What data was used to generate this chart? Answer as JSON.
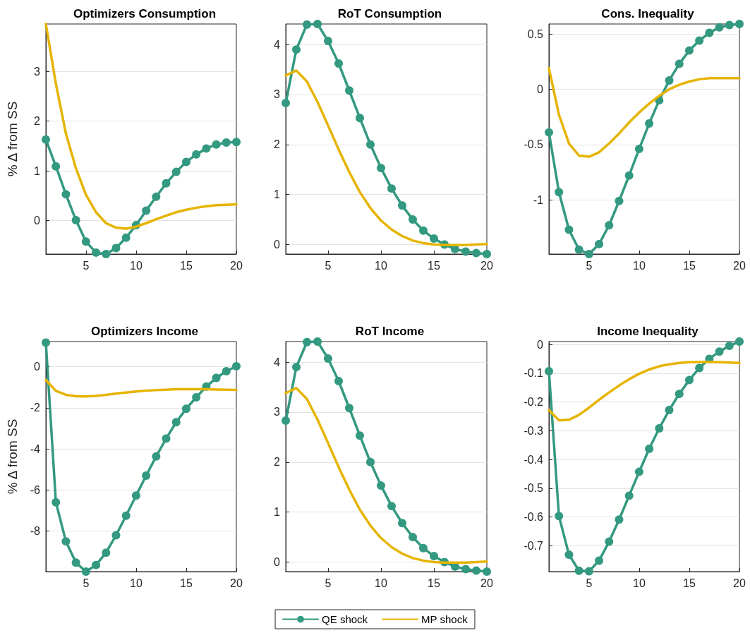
{
  "chart_data": [
    {
      "type": "line",
      "title": "Optimizers Consumption",
      "ylabel": "% Δ from SS",
      "x": [
        1,
        2,
        3,
        4,
        5,
        6,
        7,
        8,
        9,
        10,
        11,
        12,
        13,
        14,
        15,
        16,
        17,
        18,
        19,
        20
      ],
      "xlim": [
        1,
        20
      ],
      "xticks": [
        5,
        10,
        15,
        20
      ],
      "ylim": [
        -0.67,
        3.95
      ],
      "yticks": [
        0,
        1,
        2,
        3
      ],
      "grid": "y",
      "series": [
        {
          "color": "#339980",
          "marker": "circle",
          "values": [
            1.63,
            1.09,
            0.53,
            0.01,
            -0.42,
            -0.64,
            -0.67,
            -0.55,
            -0.34,
            -0.09,
            0.2,
            0.48,
            0.75,
            0.98,
            1.18,
            1.33,
            1.45,
            1.53,
            1.57,
            1.58
          ]
        },
        {
          "color": "#e6b400",
          "marker": "none",
          "values": [
            3.95,
            2.75,
            1.75,
            1.05,
            0.52,
            0.17,
            -0.05,
            -0.14,
            -0.16,
            -0.12,
            -0.05,
            0.03,
            0.1,
            0.17,
            0.22,
            0.26,
            0.29,
            0.31,
            0.32,
            0.33
          ]
        }
      ]
    },
    {
      "type": "line",
      "title": "RoT Consumption",
      "x": [
        1,
        2,
        3,
        4,
        5,
        6,
        7,
        8,
        9,
        10,
        11,
        12,
        13,
        14,
        15,
        16,
        17,
        18,
        19,
        20
      ],
      "xlim": [
        1,
        20
      ],
      "xticks": [
        5,
        10,
        15,
        20
      ],
      "ylim": [
        -0.19,
        4.41
      ],
      "yticks": [
        0,
        1,
        2,
        3,
        4
      ],
      "grid": "y",
      "series": [
        {
          "color": "#339980",
          "marker": "circle",
          "values": [
            2.83,
            3.9,
            4.4,
            4.41,
            4.07,
            3.62,
            3.08,
            2.53,
            2.0,
            1.53,
            1.12,
            0.78,
            0.5,
            0.28,
            0.12,
            0.0,
            -0.09,
            -0.14,
            -0.17,
            -0.19
          ]
        },
        {
          "color": "#e6b400",
          "marker": "none",
          "values": [
            3.38,
            3.48,
            3.26,
            2.85,
            2.38,
            1.9,
            1.45,
            1.05,
            0.73,
            0.48,
            0.3,
            0.17,
            0.08,
            0.03,
            0.0,
            -0.01,
            -0.01,
            -0.01,
            0.0,
            0.01
          ]
        }
      ]
    },
    {
      "type": "line",
      "title": "Cons. Inequality",
      "x": [
        1,
        2,
        3,
        4,
        5,
        6,
        7,
        8,
        9,
        10,
        11,
        12,
        13,
        14,
        15,
        16,
        17,
        18,
        19,
        20
      ],
      "xlim": [
        1,
        20
      ],
      "xticks": [
        5,
        10,
        15,
        20
      ],
      "ylim": [
        -1.49,
        0.59
      ],
      "yticks": [
        -1,
        -0.5,
        0,
        0.5
      ],
      "grid": "y",
      "series": [
        {
          "color": "#339980",
          "marker": "circle",
          "values": [
            -0.39,
            -0.93,
            -1.27,
            -1.45,
            -1.49,
            -1.4,
            -1.23,
            -1.01,
            -0.78,
            -0.54,
            -0.31,
            -0.1,
            0.08,
            0.23,
            0.35,
            0.44,
            0.51,
            0.56,
            0.58,
            0.59
          ]
        },
        {
          "color": "#e6b400",
          "marker": "none",
          "values": [
            0.19,
            -0.23,
            -0.49,
            -0.6,
            -0.61,
            -0.57,
            -0.49,
            -0.4,
            -0.3,
            -0.21,
            -0.13,
            -0.06,
            0.0,
            0.04,
            0.07,
            0.09,
            0.1,
            0.1,
            0.1,
            0.1
          ]
        }
      ]
    },
    {
      "type": "line",
      "title": "Optimizers Income",
      "ylabel": "% Δ from SS",
      "x": [
        1,
        2,
        3,
        4,
        5,
        6,
        7,
        8,
        9,
        10,
        11,
        12,
        13,
        14,
        15,
        16,
        17,
        18,
        19,
        20
      ],
      "xlim": [
        1,
        20
      ],
      "xticks": [
        5,
        10,
        15,
        20
      ],
      "ylim": [
        -9.97,
        1.22
      ],
      "yticks": [
        -8,
        -6,
        -4,
        -2,
        0
      ],
      "grid": "y",
      "series": [
        {
          "color": "#339980",
          "marker": "circle",
          "values": [
            1.17,
            -6.6,
            -8.5,
            -9.53,
            -9.97,
            -9.65,
            -9.05,
            -8.2,
            -7.25,
            -6.27,
            -5.3,
            -4.37,
            -3.5,
            -2.7,
            -2.05,
            -1.49,
            -0.97,
            -0.55,
            -0.22,
            0.02
          ]
        },
        {
          "color": "#e6b400",
          "marker": "none",
          "values": [
            -0.65,
            -1.18,
            -1.37,
            -1.44,
            -1.45,
            -1.42,
            -1.37,
            -1.31,
            -1.26,
            -1.21,
            -1.17,
            -1.14,
            -1.12,
            -1.1,
            -1.1,
            -1.1,
            -1.1,
            -1.11,
            -1.12,
            -1.13
          ]
        }
      ]
    },
    {
      "type": "line",
      "title": "RoT Income",
      "legend": "bottom",
      "x": [
        1,
        2,
        3,
        4,
        5,
        6,
        7,
        8,
        9,
        10,
        11,
        12,
        13,
        14,
        15,
        16,
        17,
        18,
        19,
        20
      ],
      "xlim": [
        1,
        20
      ],
      "xticks": [
        5,
        10,
        15,
        20
      ],
      "ylim": [
        -0.19,
        4.41
      ],
      "yticks": [
        0,
        1,
        2,
        3,
        4
      ],
      "grid": "y",
      "series": [
        {
          "name": "QE shock",
          "color": "#339980",
          "marker": "circle",
          "values": [
            2.83,
            3.9,
            4.4,
            4.41,
            4.07,
            3.62,
            3.08,
            2.53,
            2.0,
            1.53,
            1.12,
            0.78,
            0.5,
            0.28,
            0.12,
            0.0,
            -0.09,
            -0.14,
            -0.17,
            -0.19
          ]
        },
        {
          "name": "MP shock",
          "color": "#e6b400",
          "marker": "none",
          "values": [
            3.38,
            3.48,
            3.26,
            2.85,
            2.38,
            1.9,
            1.45,
            1.05,
            0.73,
            0.48,
            0.3,
            0.17,
            0.08,
            0.03,
            0.0,
            -0.01,
            -0.01,
            -0.01,
            0.0,
            0.01
          ]
        }
      ]
    },
    {
      "type": "line",
      "title": "Income Inequality",
      "x": [
        1,
        2,
        3,
        4,
        5,
        6,
        7,
        8,
        9,
        10,
        11,
        12,
        13,
        14,
        15,
        16,
        17,
        18,
        19,
        20
      ],
      "xlim": [
        1,
        20
      ],
      "xticks": [
        5,
        10,
        15,
        20
      ],
      "ylim": [
        -0.79,
        0.01
      ],
      "yticks": [
        -0.7,
        -0.6,
        -0.5,
        -0.4,
        -0.3,
        -0.2,
        -0.1,
        0
      ],
      "grid": "y",
      "series": [
        {
          "color": "#339980",
          "marker": "circle",
          "values": [
            -0.093,
            -0.597,
            -0.731,
            -0.787,
            -0.789,
            -0.752,
            -0.686,
            -0.609,
            -0.526,
            -0.443,
            -0.363,
            -0.292,
            -0.228,
            -0.172,
            -0.124,
            -0.082,
            -0.05,
            -0.025,
            -0.005,
            0.01
          ]
        },
        {
          "color": "#e6b400",
          "marker": "none",
          "values": [
            -0.228,
            -0.264,
            -0.262,
            -0.245,
            -0.22,
            -0.193,
            -0.167,
            -0.143,
            -0.121,
            -0.102,
            -0.087,
            -0.076,
            -0.069,
            -0.064,
            -0.062,
            -0.061,
            -0.061,
            -0.062,
            -0.063,
            -0.064
          ]
        }
      ]
    }
  ]
}
